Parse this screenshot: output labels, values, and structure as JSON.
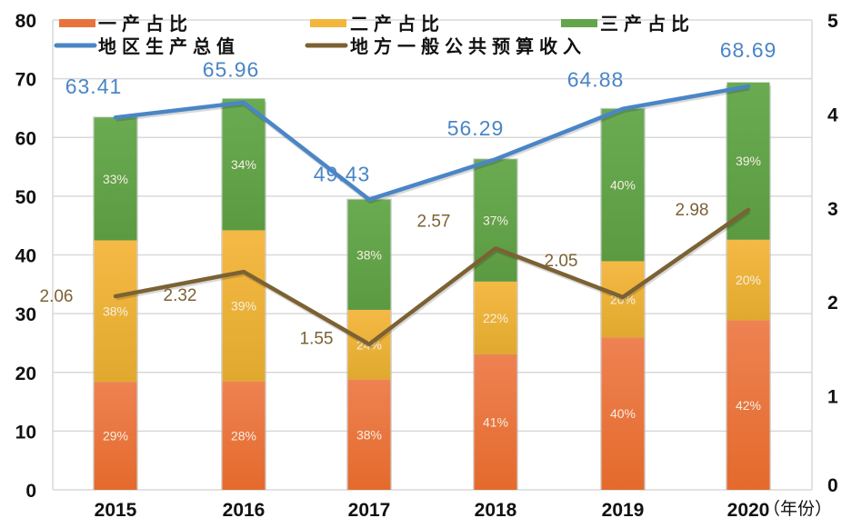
{
  "chart_data": {
    "type": "bar",
    "stacked": true,
    "categories": [
      "2015",
      "2016",
      "2017",
      "2018",
      "2019",
      "2020"
    ],
    "x_unit_label": "（年份）",
    "left_axis": {
      "ylim": [
        0,
        80
      ],
      "ticks": [
        "0",
        "10",
        "20",
        "30",
        "40",
        "50",
        "60",
        "70",
        "80"
      ]
    },
    "right_axis": {
      "ylim": [
        0,
        5
      ],
      "ticks": [
        "0",
        "1",
        "2",
        "3",
        "4",
        "5"
      ]
    },
    "grid": true,
    "bar_series": [
      {
        "name": "一产占比",
        "color": "#e8733a",
        "percent": [
          29,
          28,
          38,
          41,
          40,
          42
        ],
        "labels": [
          "29%",
          "28%",
          "38%",
          "41%",
          "40%",
          "42%"
        ]
      },
      {
        "name": "二产占比",
        "color": "#f2b63d",
        "percent": [
          38,
          39,
          24,
          22,
          20,
          20
        ],
        "labels": [
          "38%",
          "39%",
          "24%",
          "22%",
          "20%",
          "20%"
        ]
      },
      {
        "name": "三产占比",
        "color": "#64a44a",
        "percent": [
          33,
          34,
          38,
          37,
          40,
          39
        ],
        "labels": [
          "33%",
          "34%",
          "38%",
          "37%",
          "40%",
          "39%"
        ]
      }
    ],
    "line_series": [
      {
        "name": "地区生产总值",
        "axis": "left",
        "color": "#4a86c6",
        "values": [
          63.41,
          65.96,
          49.43,
          56.29,
          64.88,
          68.69
        ],
        "labels": [
          "63.41",
          "65.96",
          "49.43",
          "56.29",
          "64.88",
          "68.69"
        ]
      },
      {
        "name": "地方一般公共预算收入",
        "axis": "right",
        "color": "#7c6233",
        "values": [
          2.06,
          2.32,
          1.55,
          2.57,
          2.05,
          2.98
        ],
        "labels": [
          "2.06",
          "2.32",
          "1.55",
          "2.57",
          "2.05",
          "2.98"
        ]
      }
    ],
    "legend_position": "top"
  }
}
